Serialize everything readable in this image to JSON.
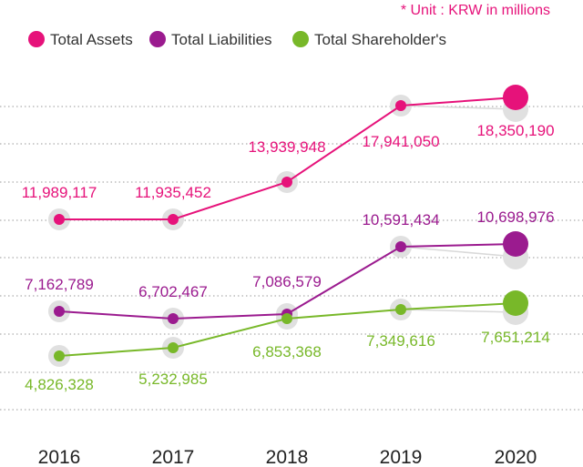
{
  "unit_note": "* Unit : KRW in millions",
  "chart_data": {
    "type": "line",
    "categories": [
      "2016",
      "2017",
      "2018",
      "2019",
      "2020"
    ],
    "series": [
      {
        "name": "Total Assets",
        "color": "#e6127a",
        "values": [
          11989117,
          11935452,
          13939948,
          17941050,
          18350190
        ],
        "labels": [
          "11,989,117",
          "11,935,452",
          "13,939,948",
          "17,941,050",
          "18,350,190"
        ]
      },
      {
        "name": "Total Liabilities",
        "color": "#9b1b8f",
        "values": [
          7162789,
          6702467,
          7086579,
          10591434,
          10698976
        ],
        "labels": [
          "7,162,789",
          "6,702,467",
          "7,086,579",
          "10,591,434",
          "10,698,976"
        ]
      },
      {
        "name": "Total Shareholder's",
        "color": "#78b829",
        "values": [
          4826328,
          5232985,
          6853368,
          7349616,
          7651214
        ],
        "labels": [
          "4,826,328",
          "5,232,985",
          "6,853,368",
          "7,349,616",
          "7,651,214"
        ]
      }
    ],
    "grid": true,
    "legend": "top-left"
  }
}
